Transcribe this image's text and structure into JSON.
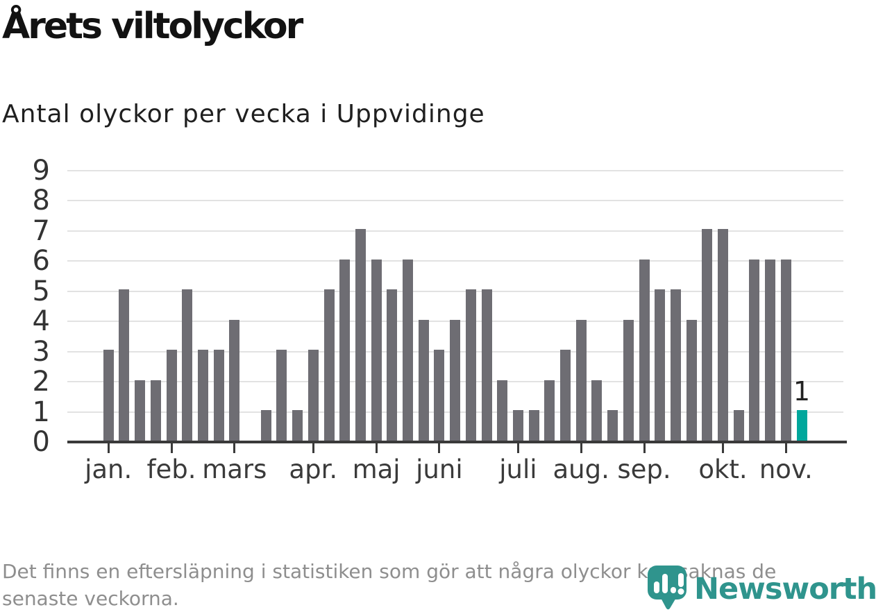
{
  "chart_data": {
    "type": "bar",
    "title": "Årets viltolyckor",
    "subtitle": "Antal olyckor per vecka i Uppvidinge",
    "values": [
      3,
      5,
      2,
      2,
      3,
      5,
      3,
      3,
      4,
      0,
      1,
      3,
      1,
      3,
      5,
      6,
      7,
      6,
      5,
      6,
      4,
      3,
      4,
      5,
      5,
      2,
      1,
      1,
      2,
      3,
      4,
      2,
      1,
      4,
      6,
      5,
      5,
      4,
      7,
      7,
      1,
      6,
      6,
      6,
      1
    ],
    "months": [
      {
        "label": "jan.",
        "week": 1
      },
      {
        "label": "feb.",
        "week": 5
      },
      {
        "label": "mars",
        "week": 9
      },
      {
        "label": "apr.",
        "week": 14
      },
      {
        "label": "maj",
        "week": 18
      },
      {
        "label": "juni",
        "week": 22
      },
      {
        "label": "juli",
        "week": 27
      },
      {
        "label": "aug.",
        "week": 31
      },
      {
        "label": "sep.",
        "week": 35
      },
      {
        "label": "okt.",
        "week": 40
      },
      {
        "label": "nov.",
        "week": 44
      }
    ],
    "yticks": [
      0,
      1,
      2,
      3,
      4,
      5,
      6,
      7,
      8,
      9
    ],
    "ylim": [
      0,
      9
    ],
    "grid": true,
    "legend": "none",
    "highlight_last_bar": true,
    "last_bar_label": "1",
    "colors": {
      "bar": "#6e6d73",
      "highlight": "#00a79c",
      "axis": "#3a3a3a",
      "grid": "#e2e2e2",
      "labels": "#333333"
    }
  },
  "footer": {
    "lines": [
      "Det finns en eftersläpning i statistiken som gör att några olyckor kan saknas de",
      "senaste veckorna."
    ]
  },
  "logo": {
    "text": "Newsworthy",
    "icon": "newsworthy-pin-barchart-icon",
    "color": "#2f948d"
  }
}
